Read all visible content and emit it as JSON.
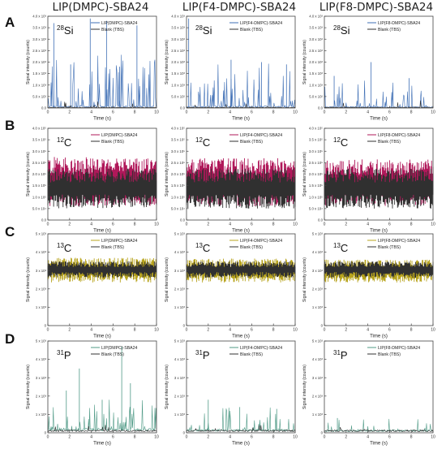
{
  "column_titles": [
    "LIP(DMPC)-SBA24",
    "LIP(F4-DMPC)-SBA24",
    "LIP(F8-DMPC)-SBA24"
  ],
  "row_labels": [
    "A",
    "B",
    "C",
    "D"
  ],
  "colors": {
    "blank": "#303030",
    "si_sample": "#3f6fb5",
    "c12_sample": "#b0185a",
    "c13_sample": "#b8a41e",
    "p31_sample": "#4f9a86",
    "axis": "#444444"
  },
  "chart_data": [
    {
      "type": "line",
      "row": "A",
      "column": "LIP(DMPC)-SBA24",
      "isotope_mass": "28",
      "isotope_symbol": "Si",
      "xlabel": "Time (s)",
      "ylabel": "Signal intensity (counts)",
      "xlim": [
        0,
        10
      ],
      "ylim": [
        0,
        4000
      ],
      "x_ticks": [
        "0",
        "2",
        "4",
        "6",
        "8",
        "10"
      ],
      "y_ticks": [
        "0.0",
        "5.0 x 10²",
        "1.0 x 10³",
        "1.5 x 10³",
        "2.0 x 10³",
        "2.5 x 10³",
        "3.0 x 10³",
        "3.5 x 10³",
        "4.0 x 10³"
      ],
      "series": [
        {
          "name": "LIP(DMPC)-SBA24",
          "color_key": "si_sample",
          "baseline": 30,
          "noise": 60,
          "spike_count": 70,
          "spike_max": 2300,
          "seed": 11,
          "peaks": [
            [
              0.55,
              3700
            ],
            [
              3.9,
              3900
            ],
            [
              5.4,
              3800
            ],
            [
              8.2,
              3600
            ],
            [
              2.1,
              1900
            ],
            [
              6.6,
              1800
            ]
          ]
        },
        {
          "name": "Blank (TBS)",
          "color_key": "blank",
          "baseline": 10,
          "noise": 25,
          "spike_count": 10,
          "spike_max": 400,
          "seed": 12,
          "peaks": []
        }
      ]
    },
    {
      "type": "line",
      "row": "A",
      "column": "LIP(F4-DMPC)-SBA24",
      "isotope_mass": "28",
      "isotope_symbol": "Si",
      "xlabel": "Time (s)",
      "ylabel": "Signal intensity (counts)",
      "xlim": [
        0,
        10
      ],
      "ylim": [
        0,
        4000
      ],
      "x_ticks": [
        "0",
        "2",
        "4",
        "6",
        "8",
        "10"
      ],
      "y_ticks": [
        "0.0",
        "5.0 x 10²",
        "1.0 x 10³",
        "1.5 x 10³",
        "2.0 x 10³",
        "2.5 x 10³",
        "3.0 x 10³",
        "3.5 x 10³",
        "4.0 x 10³"
      ],
      "series": [
        {
          "name": "LIP(F4-DMPC)-SBA24",
          "color_key": "si_sample",
          "baseline": 30,
          "noise": 60,
          "spike_count": 65,
          "spike_max": 1900,
          "seed": 21,
          "peaks": [
            [
              0.2,
              3900
            ],
            [
              4.1,
              2100
            ],
            [
              6.9,
              2000
            ],
            [
              9.2,
              1900
            ]
          ]
        },
        {
          "name": "Blank (TBS)",
          "color_key": "blank",
          "baseline": 10,
          "noise": 25,
          "spike_count": 10,
          "spike_max": 400,
          "seed": 22,
          "peaks": []
        }
      ]
    },
    {
      "type": "line",
      "row": "A",
      "column": "LIP(F8-DMPC)-SBA24",
      "isotope_mass": "28",
      "isotope_symbol": "Si",
      "xlabel": "Time (s)",
      "ylabel": "Signal intensity (counts)",
      "xlim": [
        0,
        10
      ],
      "ylim": [
        0,
        4000
      ],
      "x_ticks": [
        "0",
        "2",
        "4",
        "6",
        "8",
        "10"
      ],
      "y_ticks": [
        "0.0",
        "5.0 x 10²",
        "1.0 x 10³",
        "1.5 x 10³",
        "2.0 x 10³",
        "2.5 x 10³",
        "3.0 x 10³",
        "3.5 x 10³",
        "4.0 x 10³"
      ],
      "series": [
        {
          "name": "LIP(F8-DMPC)-SBA24",
          "color_key": "si_sample",
          "baseline": 20,
          "noise": 40,
          "spike_count": 50,
          "spike_max": 1300,
          "seed": 31,
          "peaks": [
            [
              4.3,
              2000
            ],
            [
              0.9,
              1400
            ],
            [
              7.8,
              1300
            ]
          ]
        },
        {
          "name": "Blank (TBS)",
          "color_key": "blank",
          "baseline": 10,
          "noise": 25,
          "spike_count": 10,
          "spike_max": 350,
          "seed": 32,
          "peaks": []
        }
      ]
    },
    {
      "type": "area",
      "row": "B",
      "column": "LIP(DMPC)-SBA24",
      "isotope_mass": "12",
      "isotope_symbol": "C",
      "xlabel": "Time (s)",
      "ylabel": "Signal intensity (counts)",
      "xlim": [
        0,
        10
      ],
      "ylim": [
        0,
        400000
      ],
      "x_ticks": [
        "0",
        "2",
        "4",
        "6",
        "8",
        "10"
      ],
      "y_ticks": [
        "0.0",
        "5.0 x 10⁴",
        "1.0 x 10⁵",
        "1.5 x 10⁵",
        "2.0 x 10⁵",
        "2.5 x 10⁵",
        "3.0 x 10⁵",
        "3.5 x 10⁵",
        "4.0 x 10⁵"
      ],
      "series": [
        {
          "name": "LIP(DMPC)-SBA24",
          "color_key": "c12_sample",
          "low": 60000,
          "high": 275000,
          "seed": 41
        },
        {
          "name": "Blank (TBS)",
          "color_key": "blank",
          "low": 50000,
          "high": 225000,
          "seed": 42
        }
      ]
    },
    {
      "type": "area",
      "row": "B",
      "column": "LIP(F4-DMPC)-SBA24",
      "isotope_mass": "12",
      "isotope_symbol": "C",
      "xlabel": "Time (s)",
      "ylabel": "Signal intensity (counts)",
      "xlim": [
        0,
        10
      ],
      "ylim": [
        0,
        400000
      ],
      "x_ticks": [
        "0",
        "2",
        "4",
        "6",
        "8",
        "10"
      ],
      "y_ticks": [
        "0.0",
        "5.0 x 10⁴",
        "1.0 x 10⁵",
        "1.5 x 10⁵",
        "2.0 x 10⁵",
        "2.5 x 10⁵",
        "3.0 x 10⁵",
        "3.5 x 10⁵",
        "4.0 x 10⁵"
      ],
      "series": [
        {
          "name": "LIP(F4-DMPC)-SBA24",
          "color_key": "c12_sample",
          "low": 60000,
          "high": 270000,
          "seed": 51
        },
        {
          "name": "Blank (TBS)",
          "color_key": "blank",
          "low": 50000,
          "high": 225000,
          "seed": 52
        }
      ]
    },
    {
      "type": "area",
      "row": "B",
      "column": "LIP(F8-DMPC)-SBA24",
      "isotope_mass": "12",
      "isotope_symbol": "C",
      "xlabel": "Time (s)",
      "ylabel": "Signal intensity (counts)",
      "xlim": [
        0,
        10
      ],
      "ylim": [
        0,
        400000
      ],
      "x_ticks": [
        "0",
        "2",
        "4",
        "6",
        "8",
        "10"
      ],
      "y_ticks": [
        "0.0",
        "5.0 x 10⁴",
        "1.0 x 10⁵",
        "1.5 x 10⁵",
        "2.0 x 10⁵",
        "2.5 x 10⁵",
        "3.0 x 10⁵",
        "3.5 x 10⁵",
        "4.0 x 10⁵"
      ],
      "series": [
        {
          "name": "LIP(F8-DMPC)-SBA24",
          "color_key": "c12_sample",
          "low": 60000,
          "high": 265000,
          "seed": 61
        },
        {
          "name": "Blank (TBS)",
          "color_key": "blank",
          "low": 50000,
          "high": 225000,
          "seed": 62
        }
      ]
    },
    {
      "type": "area",
      "row": "C",
      "column": "LIP(DMPC)-SBA24",
      "isotope_mass": "13",
      "isotope_symbol": "C",
      "xlabel": "Time (s)",
      "ylabel": "Signal intensity (counts)",
      "xlim": [
        0,
        10
      ],
      "ylim": [
        0,
        5000
      ],
      "x_ticks": [
        "0",
        "2",
        "4",
        "6",
        "8",
        "10"
      ],
      "y_ticks": [
        "0",
        "1 x 10³",
        "2 x 10³",
        "3 x 10³",
        "4 x 10³",
        "5 x 10³"
      ],
      "series": [
        {
          "name": "LIP(DMPC)-SBA24",
          "color_key": "c13_sample",
          "low": 2350,
          "high": 3700,
          "seed": 71
        },
        {
          "name": "Blank (TBS)",
          "color_key": "blank",
          "low": 2600,
          "high": 3500,
          "seed": 72
        }
      ]
    },
    {
      "type": "area",
      "row": "C",
      "column": "LIP(F4-DMPC)-SBA24",
      "isotope_mass": "13",
      "isotope_symbol": "C",
      "xlabel": "Time (s)",
      "ylabel": "Signal intensity (counts)",
      "xlim": [
        0,
        10
      ],
      "ylim": [
        0,
        5000
      ],
      "x_ticks": [
        "0",
        "2",
        "4",
        "6",
        "8",
        "10"
      ],
      "y_ticks": [
        "0",
        "1 x 10³",
        "2 x 10³",
        "3 x 10³",
        "4 x 10³",
        "5 x 10³"
      ],
      "series": [
        {
          "name": "LIP(F4-DMPC)-SBA24",
          "color_key": "c13_sample",
          "low": 2350,
          "high": 3650,
          "seed": 81
        },
        {
          "name": "Blank (TBS)",
          "color_key": "blank",
          "low": 2600,
          "high": 3500,
          "seed": 82
        }
      ]
    },
    {
      "type": "area",
      "row": "C",
      "column": "LIP(F8-DMPC)-SBA24",
      "isotope_mass": "13",
      "isotope_symbol": "C",
      "xlabel": "Time (s)",
      "ylabel": "Signal intensity (counts)",
      "xlim": [
        0,
        10
      ],
      "ylim": [
        0,
        5000
      ],
      "x_ticks": [
        "0",
        "2",
        "4",
        "6",
        "8",
        "10"
      ],
      "y_ticks": [
        "0",
        "1 x 10³",
        "2 x 10³",
        "3 x 10³",
        "4 x 10³",
        "5 x 10³"
      ],
      "series": [
        {
          "name": "LIP(F8-DMPC)-SBA24",
          "color_key": "c13_sample",
          "low": 2350,
          "high": 3600,
          "seed": 91
        },
        {
          "name": "Blank (TBS)",
          "color_key": "blank",
          "low": 2600,
          "high": 3500,
          "seed": 92
        }
      ]
    },
    {
      "type": "line",
      "row": "D",
      "column": "LIP(DMPC)-SBA24",
      "isotope_mass": "31",
      "isotope_symbol": "P",
      "xlabel": "Time (s)",
      "ylabel": "Signal intensity (counts)",
      "xlim": [
        0,
        10
      ],
      "ylim": [
        0,
        5000
      ],
      "x_ticks": [
        "0",
        "2",
        "4",
        "6",
        "8",
        "10"
      ],
      "y_ticks": [
        "0",
        "1 x 10³",
        "2 x 10³",
        "3 x 10³",
        "4 x 10³",
        "5 x 10³"
      ],
      "series": [
        {
          "name": "LIP(DMPC)-SBA24",
          "color_key": "p31_sample",
          "baseline": 100,
          "noise": 150,
          "spike_count": 70,
          "spike_max": 1700,
          "seed": 101,
          "peaks": [
            [
              2.9,
              3500
            ],
            [
              1.7,
              2300
            ],
            [
              6.8,
              4700
            ],
            [
              7.6,
              2700
            ],
            [
              5.0,
              1800
            ]
          ]
        },
        {
          "name": "Blank (TBS)",
          "color_key": "blank",
          "baseline": 60,
          "noise": 100,
          "spike_count": 10,
          "spike_max": 400,
          "seed": 102,
          "peaks": []
        }
      ]
    },
    {
      "type": "line",
      "row": "D",
      "column": "LIP(F4-DMPC)-SBA24",
      "isotope_mass": "31",
      "isotope_symbol": "P",
      "xlabel": "Time (s)",
      "ylabel": "Signal intensity (counts)",
      "xlim": [
        0,
        10
      ],
      "ylim": [
        0,
        5000
      ],
      "x_ticks": [
        "0",
        "2",
        "4",
        "6",
        "8",
        "10"
      ],
      "y_ticks": [
        "0",
        "1 x 10³",
        "2 x 10³",
        "3 x 10³",
        "4 x 10³",
        "5 x 10³"
      ],
      "series": [
        {
          "name": "LIP(F4-DMPC)-SBA24",
          "color_key": "p31_sample",
          "baseline": 80,
          "noise": 120,
          "spike_count": 55,
          "spike_max": 1300,
          "seed": 111,
          "peaks": [
            [
              2.0,
              1800
            ],
            [
              4.9,
              1400
            ],
            [
              8.3,
              1300
            ]
          ]
        },
        {
          "name": "Blank (TBS)",
          "color_key": "blank",
          "baseline": 60,
          "noise": 100,
          "spike_count": 10,
          "spike_max": 400,
          "seed": 112,
          "peaks": []
        }
      ]
    },
    {
      "type": "line",
      "row": "D",
      "column": "LIP(F8-DMPC)-SBA24",
      "isotope_mass": "31",
      "isotope_symbol": "P",
      "xlabel": "Time (s)",
      "ylabel": "Signal intensity (counts)",
      "xlim": [
        0,
        10
      ],
      "ylim": [
        0,
        5000
      ],
      "x_ticks": [
        "0",
        "2",
        "4",
        "6",
        "8",
        "10"
      ],
      "y_ticks": [
        "0",
        "1 x 10³",
        "2 x 10³",
        "3 x 10³",
        "4 x 10³",
        "5 x 10³"
      ],
      "series": [
        {
          "name": "LIP(F8-DMPC)-SBA24",
          "color_key": "p31_sample",
          "baseline": 60,
          "noise": 100,
          "spike_count": 25,
          "spike_max": 700,
          "seed": 121,
          "peaks": [
            [
              1.2,
              800
            ]
          ]
        },
        {
          "name": "Blank (TBS)",
          "color_key": "blank",
          "baseline": 60,
          "noise": 100,
          "spike_count": 10,
          "spike_max": 400,
          "seed": 122,
          "peaks": []
        }
      ]
    }
  ]
}
